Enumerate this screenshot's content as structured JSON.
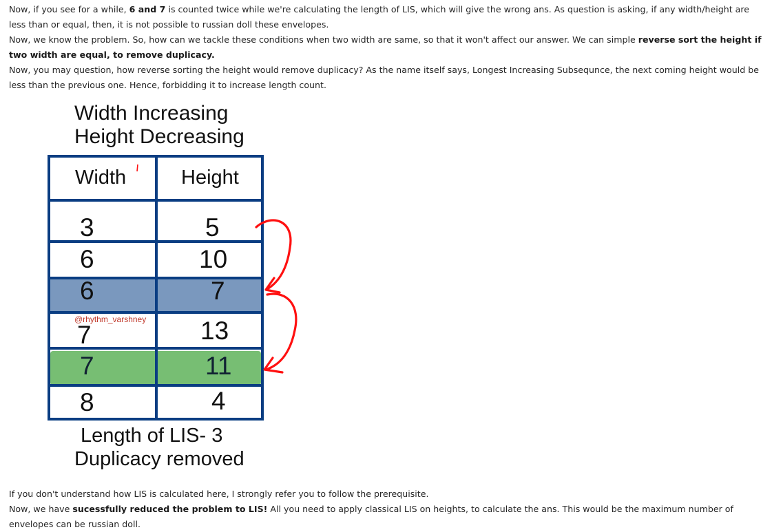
{
  "paragraphs": {
    "p1": {
      "a": "Now, if you see for a while, ",
      "b": "6 and 7",
      "c": " is counted twice while we're calculating the length of LIS, which will give the wrong ans. As question is asking, if any width/height are less than or equal, then, it is not possible to russian doll these envelopes."
    },
    "p2": {
      "a": "Now, we know the problem. So, how can we tackle these conditions when two width are same, so that it won't affect our answer. We can simple ",
      "b": "reverse sort the height if two width are equal, to remove duplicacy."
    },
    "p3": {
      "a": "Now, you may question, how reverse sorting the height would remove duplicacy? As the name itself says, Longest Increasing Subsequnce, the next coming height would be less than the previous one. Hence, forbidding it to increase length count."
    },
    "p4": {
      "a": "If you don't understand how LIS is calculated here, I strongly refer you to follow the prerequisite."
    },
    "p5": {
      "a": "Now, we have ",
      "b": "sucessfully reduced the problem to LIS!",
      "c": " All you need to apply classical LIS on heights, to calculate the ans. This would be the maximum number of envelopes can be russian doll."
    }
  },
  "figure": {
    "title_line1": "Width Increasing",
    "title_line2": "Height Decreasing",
    "headers": [
      "Width",
      "Height"
    ],
    "rows": [
      {
        "width": "3",
        "height": "5"
      },
      {
        "width": "6",
        "height": "10"
      },
      {
        "width": "6",
        "height": "7"
      },
      {
        "width": "7",
        "height": "13"
      },
      {
        "width": "7",
        "height": "11"
      },
      {
        "width": "8",
        "height": "4"
      }
    ],
    "watermark": "@rhythm_varshney",
    "caption_line1": "Length of LIS- 3",
    "caption_line2": "Duplicacy removed",
    "colors": {
      "grid": "#0a3d82",
      "highlight_blue": "#6f8fb8",
      "highlight_green": "#6bb867",
      "arrow": "#ff1010"
    }
  }
}
